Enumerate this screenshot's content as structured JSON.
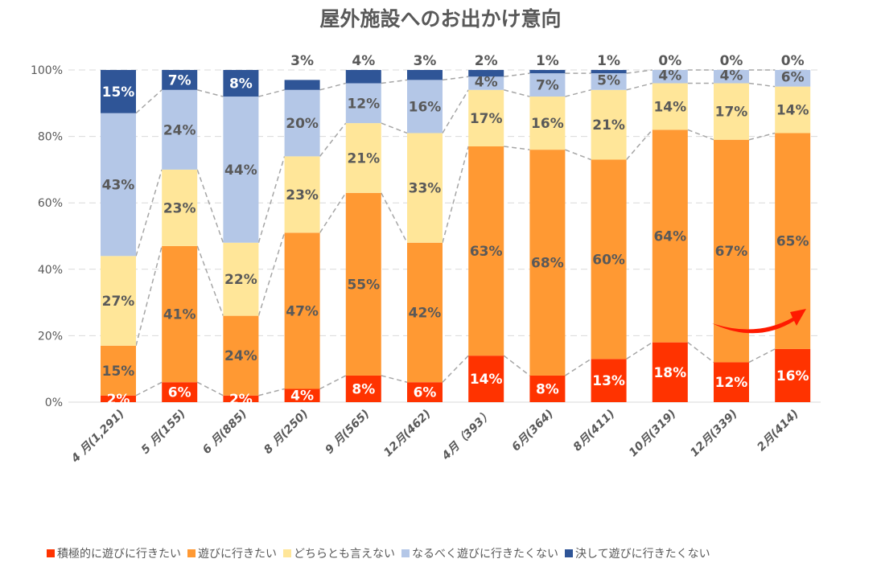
{
  "chart_data": {
    "type": "bar",
    "stacked": true,
    "title": "屋外施設へのお出かけ意向",
    "categories": [
      "4 月(1,291)",
      "5 月(155)",
      "6 月(885)",
      "8 月(250)",
      "9 月(565)",
      "12月(462)",
      "4月（393）",
      "6月(364)",
      "8月(411)",
      "10月(319)",
      "12月(339)",
      "2月(414)"
    ],
    "series": [
      {
        "name": "積極的に遊びに行きたい",
        "color": "#FF3300",
        "values": [
          2,
          6,
          2,
          4,
          8,
          6,
          14,
          8,
          13,
          18,
          12,
          16
        ]
      },
      {
        "name": "遊びに行きたい",
        "color": "#FF9933",
        "values": [
          15,
          41,
          24,
          47,
          55,
          42,
          63,
          68,
          60,
          64,
          67,
          65
        ]
      },
      {
        "name": "どちらとも言えない",
        "color": "#FFE699",
        "values": [
          27,
          23,
          22,
          23,
          21,
          33,
          17,
          16,
          21,
          14,
          17,
          14
        ]
      },
      {
        "name": "なるべく遊びに行きたくない",
        "color": "#B4C7E7",
        "values": [
          43,
          24,
          44,
          20,
          12,
          16,
          4,
          7,
          5,
          4,
          4,
          6
        ]
      },
      {
        "name": "決して遊びに行きたくない",
        "color": "#2F5597",
        "values": [
          15,
          7,
          8,
          3,
          4,
          3,
          2,
          1,
          1,
          0,
          0,
          0
        ]
      }
    ],
    "yticks": [
      "0%",
      "20%",
      "40%",
      "60%",
      "80%",
      "100%"
    ],
    "ylim": [
      0,
      100
    ],
    "grid": true,
    "legend": "bottom",
    "annotation": "red upward arrow over last two bars"
  }
}
